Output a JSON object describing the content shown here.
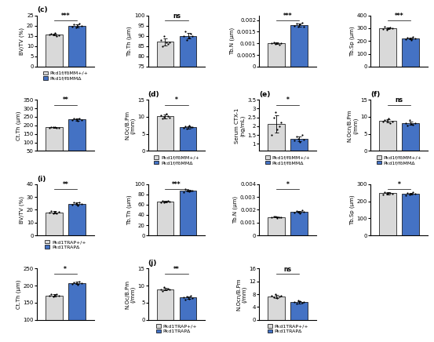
{
  "chart_data": [
    {
      "type": "bar",
      "title": "(c)",
      "categories": [
        null
      ],
      "ylabel": "BV/TV (%)",
      "ylim": [
        0,
        25
      ],
      "yticks": [
        0,
        5,
        10,
        15,
        20,
        25
      ],
      "legend": "below",
      "annotations": [
        "***"
      ],
      "series": [
        {
          "name": "Pkd1f/fδMM+/+",
          "color": "#d9d9d9",
          "values": [
            15.68333
          ],
          "errors": [
            0.534478
          ],
          "points": [
            15.5,
            16.0,
            15.8,
            16.5,
            15.0,
            15.3
          ]
        },
        {
          "name": "Pkd1f/fδMMΔ",
          "color": "#4472c4",
          "values": [
            19.96667
          ],
          "errors": [
            0.711805
          ],
          "points": [
            19.5,
            20.5,
            19.0,
            20.0,
            21.0,
            19.8
          ]
        }
      ]
    },
    {
      "type": "bar",
      "categories": [
        null
      ],
      "ylabel": "Tb.Th (μm)",
      "ylim": [
        75,
        100
      ],
      "yticks": [
        75,
        80,
        85,
        90,
        95,
        100
      ],
      "legend": false,
      "annotations": [
        "ns"
      ],
      "series": [
        {
          "name": "Pkd1f/fδMM+/+",
          "color": "#d9d9d9",
          "values": [
            87.16667
          ],
          "errors": [
            1.722401
          ],
          "points": [
            88,
            85,
            90,
            87,
            86,
            87
          ]
        },
        {
          "name": "Pkd1f/fδMMΔ",
          "color": "#4472c4",
          "values": [
            90
          ],
          "errors": [
            1.414214
          ],
          "points": [
            90,
            92,
            88,
            89,
            91,
            90
          ]
        }
      ]
    },
    {
      "type": "bar",
      "categories": [
        null
      ],
      "ylabel": "Tb.N (μm)",
      "ylim": [
        0.0,
        0.0022
      ],
      "yticks": [
        0,
        0.0005,
        0.001,
        0.0015,
        0.002
      ],
      "legend": false,
      "annotations": [
        "***"
      ],
      "series": [
        {
          "name": "Pkd1f/fδMM+/+",
          "color": "#d9d9d9",
          "values": [
            0.001
          ],
          "errors": [
            3.4059e-05
          ],
          "points": [
            0.001,
            0.00105,
            0.00098,
            0.00102,
            0.00095,
            0.001
          ]
        },
        {
          "name": "Pkd1f/fδMMΔ",
          "color": "#4472c4",
          "values": [
            0.0017866667
          ],
          "errors": [
            7.788881e-05
          ],
          "points": [
            0.00175,
            0.00185,
            0.0017,
            0.0018,
            0.0019,
            0.00172
          ]
        }
      ]
    },
    {
      "type": "bar",
      "categories": [
        null
      ],
      "ylabel": "Tb.Sp (μm)",
      "ylim": [
        0,
        400
      ],
      "yticks": [
        0,
        100,
        200,
        300,
        400
      ],
      "legend": false,
      "annotations": [
        "***"
      ],
      "series": [
        {
          "name": "Pkd1f/fδMM+/+",
          "color": "#d9d9d9",
          "values": [
            299.6667
          ],
          "errors": [
            7.118052
          ],
          "points": [
            295,
            310,
            290,
            300,
            305,
            298
          ]
        },
        {
          "name": "Pkd1f/fδMMΔ",
          "color": "#4472c4",
          "values": [
            219.6667
          ],
          "errors": [
            7.118052
          ],
          "points": [
            215,
            225,
            220,
            210,
            230,
            218
          ]
        }
      ]
    },
    {
      "type": "bar",
      "categories": [
        null
      ],
      "ylabel": "Ct.Th (μm)",
      "ylim": [
        50,
        350
      ],
      "yticks": [
        50,
        100,
        150,
        200,
        250,
        300,
        350
      ],
      "legend": false,
      "annotations": [
        "**"
      ],
      "series": [
        {
          "name": "Pkd1f/fδMM+/+",
          "color": "#d9d9d9",
          "values": [
            188
          ],
          "errors": [
            2.607681
          ],
          "points": [
            185,
            190,
            188,
            192,
            187,
            186
          ]
        },
        {
          "name": "Pkd1f/fδMMΔ",
          "color": "#4472c4",
          "values": [
            234.5
          ],
          "errors": [
            5.576737
          ],
          "points": [
            230,
            240,
            235,
            228,
            242,
            232
          ]
        }
      ]
    },
    {
      "type": "bar",
      "title": "(d)",
      "categories": [
        null
      ],
      "ylabel": "N.Oc/B.Pm\n(/mm)",
      "ylim": [
        0,
        15
      ],
      "yticks": [
        0,
        5,
        10,
        15
      ],
      "legend": "below",
      "annotations": [
        "*"
      ],
      "series": [
        {
          "name": "Pkd1f/fδMM+/+",
          "color": "#d9d9d9",
          "values": [
            10.16667
          ],
          "errors": [
            0.531664
          ],
          "points": [
            10.5,
            9.5,
            10.0,
            11.0,
            10.2,
            9.8
          ]
        },
        {
          "name": "Pkd1f/fδMMΔ",
          "color": "#4472c4",
          "values": [
            6.98333
          ],
          "errors": [
            0.343026
          ],
          "points": [
            6.8,
            7.2,
            6.5,
            7.5,
            7.0,
            6.9
          ]
        }
      ]
    },
    {
      "type": "bar",
      "title": "(e)",
      "categories": [
        null
      ],
      "ylabel": "Serum CTX-1\n(ng/mL)",
      "ylim": [
        0.6,
        3.5
      ],
      "yticks": [
        1,
        1.5,
        2,
        2.5,
        3,
        3.5
      ],
      "legend": "below",
      "annotations": [
        "*"
      ],
      "series": [
        {
          "name": "Pkd1f/fδMM+/+",
          "color": "#d9d9d9",
          "values": [
            2.13333
          ],
          "errors": [
            0.471876
          ],
          "points": [
            1.5,
            2.5,
            2.8,
            1.8,
            2.0,
            2.2
          ]
        },
        {
          "name": "Pkd1f/fδMMΔ",
          "color": "#4472c4",
          "values": [
            1.291667
          ],
          "errors": [
            0.142887
          ],
          "points": [
            1.2,
            1.4,
            1.3,
            1.1,
            1.5,
            1.25
          ]
        }
      ]
    },
    {
      "type": "bar",
      "title": "(f)",
      "categories": [
        null
      ],
      "ylabel": "N.Ocn/B.Pm\n(/mm)",
      "ylim": [
        0,
        15
      ],
      "yticks": [
        0,
        5,
        10,
        15
      ],
      "legend": "below",
      "annotations": [
        "ns"
      ],
      "series": [
        {
          "name": "Pkd1f/fδMM+/+",
          "color": "#d9d9d9",
          "values": [
            8.76667
          ],
          "errors": [
            0.450185
          ],
          "points": [
            8.5,
            9.0,
            8.8,
            9.5,
            8.2,
            8.6
          ]
        },
        {
          "name": "Pkd1f/fδMMΔ",
          "color": "#4472c4",
          "values": [
            8.1
          ],
          "errors": [
            0.505964
          ],
          "points": [
            8.2,
            7.5,
            9.0,
            8.0,
            7.8,
            8.1
          ]
        }
      ]
    },
    {
      "type": "bar",
      "title": "(i)",
      "categories": [
        null
      ],
      "ylabel": "BV/TV (%)",
      "ylim": [
        0,
        40
      ],
      "yticks": [
        0,
        10,
        20,
        30,
        40
      ],
      "legend": "below",
      "annotations": [
        "**"
      ],
      "series": [
        {
          "name": "Pkd1TRAP+/+",
          "color": "#d9d9d9",
          "values": [
            18.03333
          ],
          "errors": [
            0.711805
          ],
          "points": [
            18.0,
            19.0,
            17.5,
            18.5,
            17.0,
            18.2
          ]
        },
        {
          "name": "Pkd1TRAPΔ",
          "color": "#4472c4",
          "values": [
            24.8
          ],
          "errors": [
            0.927362
          ],
          "points": [
            24.0,
            26.0,
            25.0,
            23.5,
            25.5,
            24.8
          ]
        }
      ]
    },
    {
      "type": "bar",
      "categories": [
        null
      ],
      "ylabel": "Tb.Th (μm)",
      "ylim": [
        0,
        100
      ],
      "yticks": [
        0,
        20,
        40,
        60,
        80,
        100
      ],
      "legend": false,
      "annotations": [
        "***"
      ],
      "series": [
        {
          "name": "Pkd1TRAP+/+",
          "color": "#d9d9d9",
          "values": [
            66
          ],
          "errors": [
            1.414214
          ],
          "points": [
            65,
            68,
            64,
            66,
            67,
            66
          ]
        },
        {
          "name": "Pkd1TRAPΔ",
          "color": "#4472c4",
          "values": [
            87.33333
          ],
          "errors": [
            1.75119
          ],
          "points": [
            85,
            90,
            88,
            86,
            87,
            88
          ]
        }
      ]
    },
    {
      "type": "bar",
      "categories": [
        null
      ],
      "ylabel": "Tb.N (μm)",
      "ylim": [
        0.0,
        0.004
      ],
      "yticks": [
        0,
        0.001,
        0.002,
        0.003,
        0.004
      ],
      "legend": false,
      "annotations": [
        "*"
      ],
      "series": [
        {
          "name": "Pkd1TRAP+/+",
          "color": "#d9d9d9",
          "values": [
            0.00143
          ],
          "errors": [
            4.195235e-05
          ],
          "points": [
            0.0014,
            0.0015,
            0.00145,
            0.00138,
            0.00142,
            0.00143
          ]
        },
        {
          "name": "Pkd1TRAPΔ",
          "color": "#4472c4",
          "values": [
            0.0018466667
          ],
          "errors": [
            7.118052e-05
          ],
          "points": [
            0.0018,
            0.0019,
            0.00185,
            0.00175,
            0.00195,
            0.00183
          ]
        }
      ]
    },
    {
      "type": "bar",
      "categories": [
        null
      ],
      "ylabel": "Tb.Sp (μm)",
      "ylim": [
        0,
        300
      ],
      "yticks": [
        0,
        100,
        200,
        300
      ],
      "legend": false,
      "annotations": [
        "*"
      ],
      "series": [
        {
          "name": "Pkd1TRAP+/+",
          "color": "#d9d9d9",
          "values": [
            246.8333
          ],
          "errors": [
            5.344779
          ],
          "points": [
            240,
            255,
            245,
            250,
            248,
            243
          ]
        },
        {
          "name": "Pkd1TRAPΔ",
          "color": "#4472c4",
          "values": [
            244
          ],
          "errors": [
            6.356099
          ],
          "points": [
            235,
            250,
            240,
            245,
            252,
            242
          ]
        }
      ]
    },
    {
      "type": "bar",
      "categories": [
        null
      ],
      "ylabel": "Ct.Th (μm)",
      "ylim": [
        100,
        250
      ],
      "yticks": [
        100,
        150,
        200,
        250
      ],
      "legend": false,
      "annotations": [
        "*"
      ],
      "series": [
        {
          "name": "Pkd1TRAP+/+",
          "color": "#d9d9d9",
          "values": [
            171.6667
          ],
          "errors": [
            2.581989
          ],
          "points": [
            170,
            175,
            168,
            172,
            174,
            171
          ]
        },
        {
          "name": "Pkd1TRAPΔ",
          "color": "#4472c4",
          "values": [
            207.5
          ],
          "errors": [
            3.271085
          ],
          "points": [
            205,
            210,
            208,
            203,
            212,
            207
          ]
        }
      ]
    },
    {
      "type": "bar",
      "title": "(j)",
      "categories": [
        null
      ],
      "ylabel": "N.Oc/B.Pm\n(/mm)",
      "ylim": [
        0,
        15
      ],
      "yticks": [
        0,
        5,
        10,
        15
      ],
      "legend": "below",
      "annotations": [
        "**"
      ],
      "series": [
        {
          "name": "Pkd1TRAP+/+",
          "color": "#d9d9d9",
          "values": [
            8.98333
          ],
          "errors": [
            0.343026
          ],
          "points": [
            9.0,
            8.5,
            9.5,
            8.8,
            9.2,
            8.9
          ]
        },
        {
          "name": "Pkd1TRAPΔ",
          "color": "#4472c4",
          "values": [
            6.48333
          ],
          "errors": [
            0.371035
          ],
          "points": [
            6.5,
            6.0,
            6.8,
            6.2,
            7.0,
            6.4
          ]
        }
      ]
    },
    {
      "type": "bar",
      "categories": [
        null
      ],
      "ylabel": "N.Ocn/B.Pm\n(/mm)",
      "ylim": [
        0,
        16
      ],
      "yticks": [
        0,
        4,
        8,
        12,
        16
      ],
      "legend": "below",
      "annotations": [
        "ns"
      ],
      "series": [
        {
          "name": "Pkd1TRAP+/+",
          "color": "#d9d9d9",
          "values": [
            7.31667
          ],
          "errors": [
            0.421505
          ],
          "points": [
            7.5,
            7.0,
            8.0,
            6.8,
            7.2,
            7.4
          ]
        },
        {
          "name": "Pkd1TRAPΔ",
          "color": "#4472c4",
          "values": [
            5.51667
          ],
          "errors": [
            0.371035
          ],
          "points": [
            5.5,
            5.0,
            6.0,
            5.8,
            5.2,
            5.6
          ]
        }
      ]
    }
  ]
}
